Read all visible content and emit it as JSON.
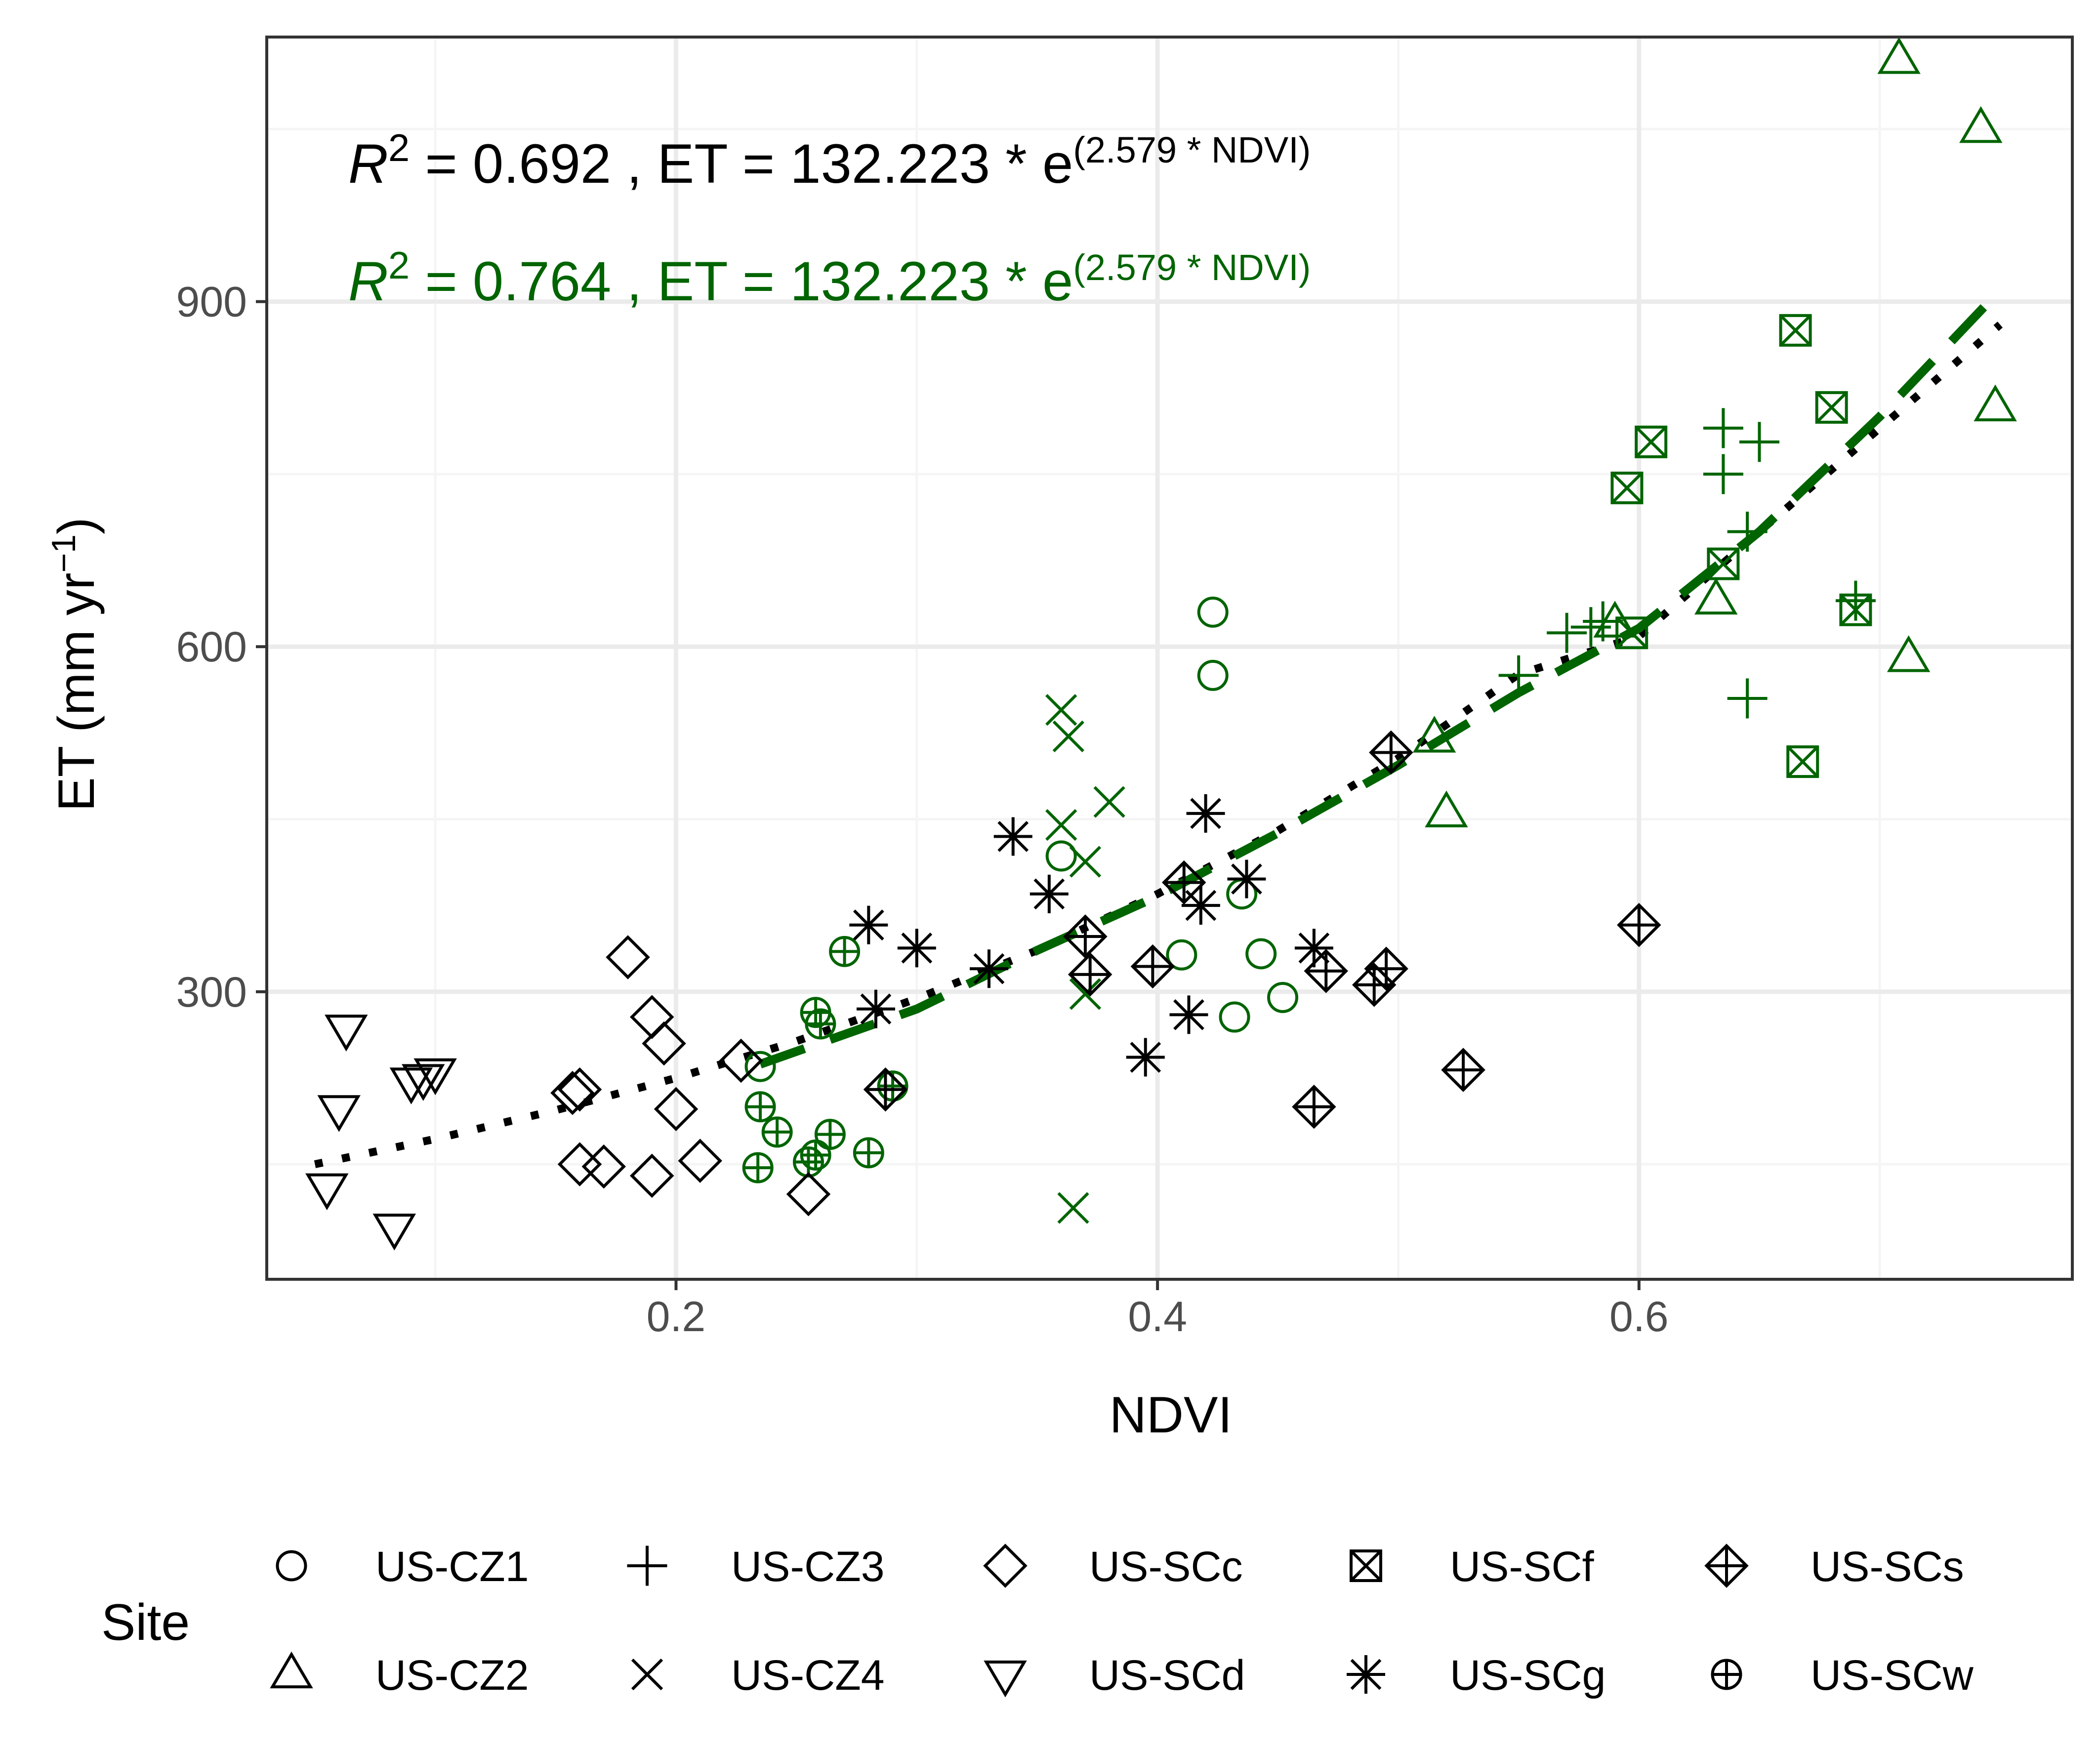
{
  "chart_data": {
    "type": "scatter",
    "xlabel": "NDVI",
    "ylabel": "ET (mm yr",
    "ylabel_sup": "−1",
    "ylabel_close": ")",
    "xlim": [
      0.03,
      0.78
    ],
    "ylim": [
      50,
      1130
    ],
    "xticks": [
      0.2,
      0.4,
      0.6
    ],
    "xtick_labels": [
      "0.2",
      "0.4",
      "0.6"
    ],
    "yticks": [
      300,
      600,
      900
    ],
    "ytick_labels": [
      "300",
      "600",
      "900"
    ],
    "grid": true,
    "colors": {
      "black": "#000000",
      "green": "#006400",
      "grid_major": "#ebebeb",
      "grid_minor": "#f5f5f5",
      "panel_border": "#333333"
    },
    "annotations": [
      {
        "r": "R",
        "sup": "2",
        "text": " = 0.692 , ET = 132.223 * e",
        "exp": "(2.579 * NDVI)",
        "color": "#000000"
      },
      {
        "r": "R",
        "sup": "2",
        "text": " = 0.764 , ET = 132.223 * e",
        "exp": "(2.579 * NDVI)",
        "color": "#006400"
      }
    ],
    "fits": [
      {
        "name": "black fit",
        "color": "#000000",
        "style": "dotted",
        "x": [
          0.05,
          0.1,
          0.15,
          0.2,
          0.25,
          0.3,
          0.35,
          0.4,
          0.45,
          0.5,
          0.55,
          0.6,
          0.65,
          0.7,
          0.75
        ],
        "y": [
          150,
          172,
          197,
          225,
          257,
          294,
          336,
          385,
          440,
          503,
          576,
          609,
          700,
          790,
          880
        ]
      },
      {
        "name": "green fit",
        "color": "#006400",
        "style": "dashed",
        "x": [
          0.235,
          0.3,
          0.35,
          0.4,
          0.45,
          0.5,
          0.55,
          0.6,
          0.65,
          0.7,
          0.75
        ],
        "y": [
          237,
          285,
          336,
          383,
          438,
          497,
          560,
          616,
          700,
          800,
          910
        ]
      }
    ],
    "legend": {
      "title": "Site",
      "position": "bottom",
      "entries": [
        {
          "label": "US-CZ1",
          "shape": "circle"
        },
        {
          "label": "US-CZ3",
          "shape": "plus"
        },
        {
          "label": "US-SCc",
          "shape": "diamond"
        },
        {
          "label": "US-SCf",
          "shape": "square-x"
        },
        {
          "label": "US-SCs",
          "shape": "diamond-plus"
        },
        {
          "label": "US-CZ2",
          "shape": "triangle"
        },
        {
          "label": "US-CZ4",
          "shape": "x"
        },
        {
          "label": "US-SCd",
          "shape": "triangle-down"
        },
        {
          "label": "US-SCg",
          "shape": "asterisk"
        },
        {
          "label": "US-SCw",
          "shape": "circle-plus"
        }
      ]
    },
    "series": [
      {
        "name": "US-CZ1",
        "shape": "circle",
        "color": "#006400",
        "points": [
          [
            0.235,
            235
          ],
          [
            0.36,
            418
          ],
          [
            0.41,
            332
          ],
          [
            0.423,
            630
          ],
          [
            0.423,
            575
          ],
          [
            0.432,
            278
          ],
          [
            0.435,
            385
          ],
          [
            0.443,
            333
          ],
          [
            0.452,
            295
          ]
        ]
      },
      {
        "name": "US-CZ2",
        "shape": "triangle",
        "color": "#006400",
        "points": [
          [
            0.515,
            520
          ],
          [
            0.52,
            455
          ],
          [
            0.59,
            620
          ],
          [
            0.632,
            640
          ],
          [
            0.708,
            1110
          ],
          [
            0.712,
            590
          ],
          [
            0.742,
            1050
          ],
          [
            0.748,
            808
          ]
        ]
      },
      {
        "name": "US-CZ3",
        "shape": "plus",
        "color": "#006400",
        "points": [
          [
            0.55,
            575
          ],
          [
            0.57,
            612
          ],
          [
            0.58,
            617
          ],
          [
            0.585,
            622
          ],
          [
            0.635,
            790
          ],
          [
            0.635,
            750
          ],
          [
            0.645,
            555
          ],
          [
            0.65,
            778
          ],
          [
            0.645,
            700
          ],
          [
            0.69,
            640
          ]
        ]
      },
      {
        "name": "US-CZ4",
        "shape": "x",
        "color": "#006400",
        "points": [
          [
            0.36,
            545
          ],
          [
            0.363,
            522
          ],
          [
            0.36,
            445
          ],
          [
            0.37,
            413
          ],
          [
            0.38,
            465
          ],
          [
            0.37,
            298
          ],
          [
            0.365,
            112
          ]
        ]
      },
      {
        "name": "US-SCf",
        "shape": "square-x",
        "color": "#006400",
        "points": [
          [
            0.595,
            738
          ],
          [
            0.597,
            612
          ],
          [
            0.605,
            778
          ],
          [
            0.635,
            672
          ],
          [
            0.665,
            875
          ],
          [
            0.668,
            500
          ],
          [
            0.68,
            808
          ],
          [
            0.69,
            632
          ]
        ]
      },
      {
        "name": "US-SCw",
        "shape": "circle-plus",
        "color": "#006400",
        "points": [
          [
            0.235,
            200
          ],
          [
            0.242,
            178
          ],
          [
            0.234,
            147
          ],
          [
            0.255,
            152
          ],
          [
            0.258,
            158
          ],
          [
            0.258,
            282
          ],
          [
            0.26,
            272
          ],
          [
            0.264,
            176
          ],
          [
            0.27,
            335
          ],
          [
            0.28,
            160
          ],
          [
            0.29,
            218
          ]
        ]
      },
      {
        "name": "US-SCc",
        "shape": "diamond",
        "color": "#000000",
        "points": [
          [
            0.157,
            212
          ],
          [
            0.16,
            215
          ],
          [
            0.16,
            150
          ],
          [
            0.17,
            148
          ],
          [
            0.18,
            330
          ],
          [
            0.19,
            140
          ],
          [
            0.19,
            278
          ],
          [
            0.195,
            255
          ],
          [
            0.2,
            198
          ],
          [
            0.21,
            153
          ],
          [
            0.227,
            240
          ],
          [
            0.255,
            124
          ]
        ]
      },
      {
        "name": "US-SCd",
        "shape": "triangle-down",
        "color": "#000000",
        "points": [
          [
            0.055,
            130
          ],
          [
            0.06,
            198
          ],
          [
            0.063,
            268
          ],
          [
            0.083,
            95
          ],
          [
            0.09,
            222
          ],
          [
            0.095,
            225
          ],
          [
            0.1,
            230
          ]
        ]
      },
      {
        "name": "US-SCg",
        "shape": "asterisk",
        "color": "#000000",
        "points": [
          [
            0.28,
            358
          ],
          [
            0.283,
            285
          ],
          [
            0.3,
            338
          ],
          [
            0.33,
            320
          ],
          [
            0.34,
            435
          ],
          [
            0.355,
            385
          ],
          [
            0.395,
            243
          ],
          [
            0.413,
            280
          ],
          [
            0.418,
            375
          ],
          [
            0.42,
            455
          ],
          [
            0.437,
            398
          ],
          [
            0.465,
            338
          ]
        ]
      },
      {
        "name": "US-SCs",
        "shape": "diamond-plus",
        "color": "#000000",
        "points": [
          [
            0.287,
            215
          ],
          [
            0.37,
            348
          ],
          [
            0.372,
            315
          ],
          [
            0.398,
            322
          ],
          [
            0.411,
            395
          ],
          [
            0.465,
            200
          ],
          [
            0.47,
            318
          ],
          [
            0.49,
            306
          ],
          [
            0.495,
            320
          ],
          [
            0.497,
            508
          ],
          [
            0.527,
            232
          ],
          [
            0.6,
            358
          ]
        ]
      }
    ]
  }
}
